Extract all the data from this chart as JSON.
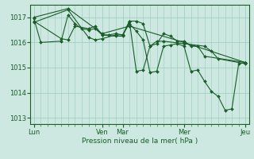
{
  "background_color": "#cce8e0",
  "grid_color": "#99ccbb",
  "line_color": "#1a5c2a",
  "tick_label_color": "#1a5c2a",
  "xlabel": "Pression niveau de la mer( hPa )",
  "ylim": [
    1012.75,
    1017.5
  ],
  "yticks": [
    1013,
    1014,
    1015,
    1016,
    1017
  ],
  "xtick_labels": [
    "Lun",
    "Ven",
    "Mar",
    "Mer",
    "Jeu"
  ],
  "xtick_positions": [
    0,
    10,
    13,
    22,
    31
  ],
  "series": [
    [
      0,
      1016.95,
      1,
      1016.0,
      4,
      1016.05,
      5,
      1017.1,
      6,
      1016.75,
      7,
      1016.55,
      8,
      1016.5,
      9,
      1016.55,
      10,
      1016.3,
      11,
      1016.3,
      12,
      1016.35,
      13,
      1016.3,
      14,
      1016.75,
      15,
      1016.45,
      16,
      1016.1,
      17,
      1014.8,
      18,
      1014.85,
      19,
      1015.85,
      20,
      1015.9,
      21,
      1015.95,
      22,
      1015.85,
      23,
      1014.85,
      24,
      1014.9,
      25,
      1014.45,
      26,
      1014.05,
      27,
      1013.85,
      28,
      1013.3,
      29,
      1013.35,
      30,
      1015.15,
      31,
      1015.2
    ],
    [
      0,
      1017.0,
      5,
      1017.35,
      10,
      1016.35,
      14,
      1016.65,
      22,
      1016.0,
      31,
      1015.2
    ],
    [
      0,
      1016.85,
      4,
      1016.15,
      5,
      1016.1,
      6,
      1016.65,
      8,
      1016.55,
      9,
      1016.65,
      10,
      1016.3,
      12,
      1016.25,
      13,
      1016.25,
      14,
      1016.85,
      15,
      1014.85,
      16,
      1014.9,
      17,
      1015.85,
      18,
      1016.05,
      19,
      1016.05,
      22,
      1015.95,
      25,
      1015.85,
      26,
      1015.65,
      27,
      1015.35,
      31,
      1015.15
    ],
    [
      0,
      1016.8,
      5,
      1017.3,
      8,
      1016.2,
      9,
      1016.1,
      10,
      1016.15,
      12,
      1016.3,
      13,
      1016.3,
      14,
      1016.85,
      15,
      1016.85,
      16,
      1016.75,
      17,
      1015.85,
      18,
      1015.95,
      19,
      1016.35,
      20,
      1016.25,
      21,
      1016.05,
      22,
      1016.05,
      23,
      1015.85,
      24,
      1015.85,
      25,
      1015.45,
      31,
      1015.2
    ]
  ]
}
